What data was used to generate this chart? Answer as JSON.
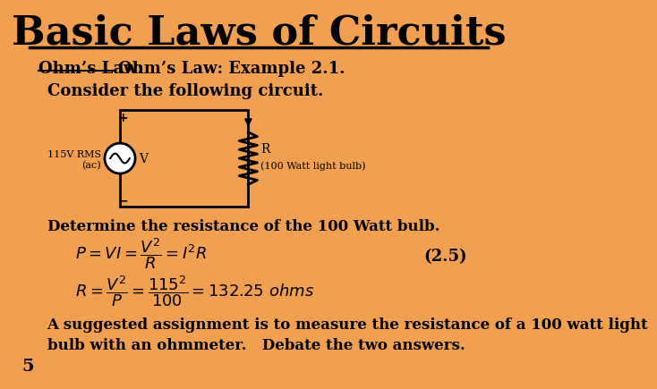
{
  "background_color": "#F0A050",
  "title": "Basic Laws of Circuits",
  "title_fontsize": 32,
  "text_color": "#000000",
  "ohms_law_label": "Ohm’s Law:",
  "example_text": "Ohm’s Law: Example 2.1.",
  "consider_text": "Consider the following circuit.",
  "determine_text": "Determine the resistance of the 100 Watt bulb.",
  "equation_label": "(2.5)",
  "assignment_text": "A suggested assignment is to measure the resistance of a 100 watt light\nbulb with an ohmmeter.   Debate the two answers.",
  "page_number": "5"
}
